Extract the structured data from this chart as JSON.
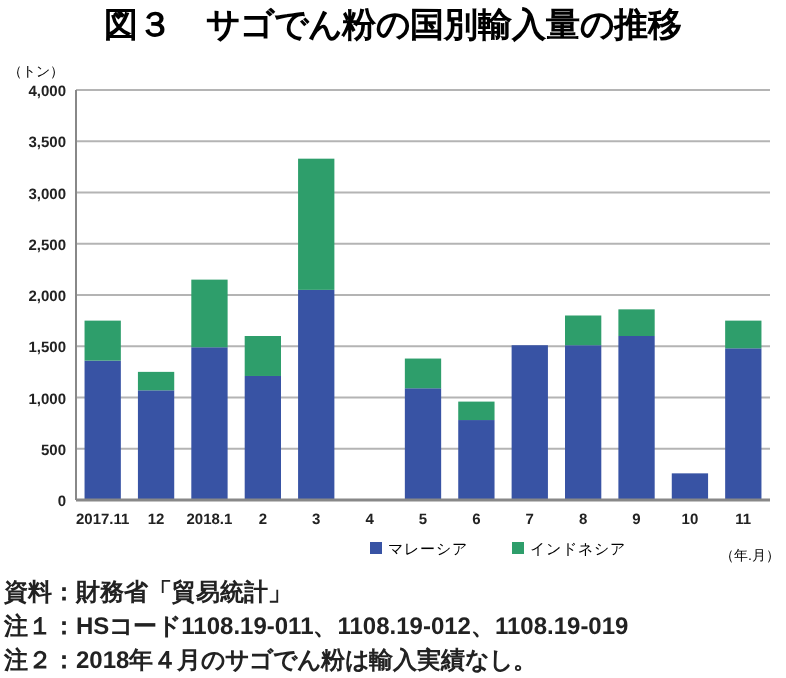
{
  "chart_data": {
    "type": "bar",
    "title": "図３　サゴでん粉の国別輸入量の推移",
    "ylabel": "（トン）",
    "xlabel": "（年.月）",
    "categories": [
      "2017.11",
      "12",
      "2018.1",
      "2",
      "3",
      "4",
      "5",
      "6",
      "7",
      "8",
      "9",
      "10",
      "11"
    ],
    "stacked": true,
    "series": [
      {
        "name": "マレーシア",
        "color": "#3853a4",
        "values": [
          1360,
          1070,
          1490,
          1210,
          2050,
          0,
          1090,
          780,
          1510,
          1510,
          1600,
          260,
          1480
        ]
      },
      {
        "name": "インドネシア",
        "color": "#2e9e6b",
        "values": [
          390,
          180,
          660,
          390,
          1280,
          0,
          290,
          180,
          0,
          290,
          260,
          0,
          270
        ]
      }
    ],
    "ylim": [
      0,
      4000
    ],
    "yticks": [
      {
        "value": 0,
        "label": "0"
      },
      {
        "value": 500,
        "label": "500"
      },
      {
        "value": 1000,
        "label": "1,000"
      },
      {
        "value": 1500,
        "label": "1,500"
      },
      {
        "value": 2000,
        "label": "2,000"
      },
      {
        "value": 2500,
        "label": "2,500"
      },
      {
        "value": 3000,
        "label": "3,000"
      },
      {
        "value": 3500,
        "label": "3,500"
      },
      {
        "value": 4000,
        "label": "4,000"
      }
    ],
    "grid": "y",
    "legend": "bottom",
    "annotations": [
      "資料：財務省「貿易統計」",
      "注１：HSコード1108.19-011、1108.19-012、1108.19-019",
      "注２：2018年４月のサゴでん粉は輸入実績なし。"
    ]
  }
}
